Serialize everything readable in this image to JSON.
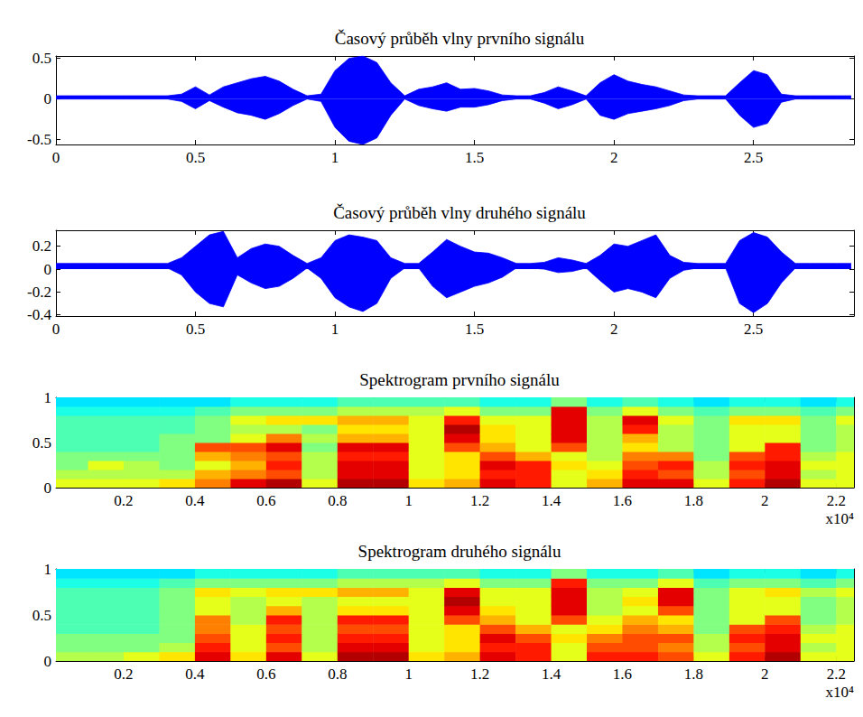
{
  "chart_data": [
    {
      "type": "area",
      "title": "Časový průběh vlny prvního signálu",
      "color": "#0000ff",
      "xlim": [
        0,
        2.86
      ],
      "xticks": [
        0,
        0.5,
        1,
        1.5,
        2,
        2.5
      ],
      "ylim": [
        -0.56,
        0.53
      ],
      "yticks": [
        -0.5,
        0,
        0.5
      ],
      "x": [
        0,
        0.05,
        0.1,
        0.15,
        0.2,
        0.25,
        0.3,
        0.35,
        0.4,
        0.45,
        0.5,
        0.55,
        0.6,
        0.65,
        0.7,
        0.75,
        0.8,
        0.85,
        0.9,
        0.95,
        1,
        1.05,
        1.1,
        1.15,
        1.2,
        1.25,
        1.3,
        1.35,
        1.4,
        1.45,
        1.5,
        1.55,
        1.6,
        1.65,
        1.7,
        1.75,
        1.8,
        1.85,
        1.9,
        1.95,
        2,
        2.05,
        2.1,
        2.15,
        2.2,
        2.25,
        2.3,
        2.35,
        2.4,
        2.45,
        2.5,
        2.55,
        2.6,
        2.65,
        2.7,
        2.75,
        2.8,
        2.85
      ],
      "upper": [
        0.04,
        0.04,
        0.04,
        0.04,
        0.04,
        0.04,
        0.04,
        0.04,
        0.04,
        0.06,
        0.15,
        0.05,
        0.15,
        0.2,
        0.25,
        0.28,
        0.22,
        0.12,
        0.04,
        0.06,
        0.35,
        0.5,
        0.53,
        0.45,
        0.2,
        0.04,
        0.12,
        0.15,
        0.2,
        0.12,
        0.13,
        0.1,
        0.05,
        0.04,
        0.04,
        0.08,
        0.15,
        0.1,
        0.04,
        0.2,
        0.3,
        0.22,
        0.18,
        0.15,
        0.1,
        0.05,
        0.04,
        0.04,
        0.04,
        0.2,
        0.35,
        0.3,
        0.06,
        0.04,
        0.04,
        0.04,
        0.04,
        0.04
      ],
      "lower": [
        0,
        0,
        0,
        0,
        0,
        0,
        0,
        0,
        0,
        -0.03,
        -0.12,
        -0.02,
        -0.1,
        -0.17,
        -0.2,
        -0.25,
        -0.18,
        -0.08,
        0,
        -0.03,
        -0.35,
        -0.52,
        -0.56,
        -0.48,
        -0.2,
        0,
        -0.08,
        -0.12,
        -0.15,
        -0.1,
        -0.1,
        -0.07,
        -0.02,
        0,
        0,
        -0.05,
        -0.12,
        -0.07,
        0,
        -0.2,
        -0.25,
        -0.18,
        -0.15,
        -0.12,
        -0.08,
        -0.02,
        0,
        0,
        0,
        -0.2,
        -0.35,
        -0.3,
        -0.04,
        0,
        0,
        0,
        0,
        0
      ]
    },
    {
      "type": "area",
      "title": "Časový průběh vlny druhého signálu",
      "color": "#0000ff",
      "xlim": [
        0,
        2.86
      ],
      "xticks": [
        0,
        0.5,
        1,
        1.5,
        2,
        2.5
      ],
      "ylim": [
        -0.41,
        0.34
      ],
      "yticks": [
        -0.4,
        -0.2,
        0,
        0.2
      ],
      "x": [
        0,
        0.05,
        0.1,
        0.15,
        0.2,
        0.25,
        0.3,
        0.35,
        0.4,
        0.45,
        0.5,
        0.55,
        0.6,
        0.65,
        0.7,
        0.75,
        0.8,
        0.85,
        0.9,
        0.95,
        1,
        1.05,
        1.1,
        1.15,
        1.2,
        1.25,
        1.3,
        1.35,
        1.4,
        1.45,
        1.5,
        1.55,
        1.6,
        1.65,
        1.7,
        1.75,
        1.8,
        1.85,
        1.9,
        1.95,
        2,
        2.05,
        2.1,
        2.15,
        2.2,
        2.25,
        2.3,
        2.35,
        2.4,
        2.45,
        2.5,
        2.55,
        2.6,
        2.65,
        2.7,
        2.75,
        2.8,
        2.85
      ],
      "upper": [
        0.05,
        0.05,
        0.05,
        0.05,
        0.05,
        0.05,
        0.05,
        0.05,
        0.05,
        0.1,
        0.2,
        0.3,
        0.33,
        0.1,
        0.18,
        0.22,
        0.2,
        0.12,
        0.05,
        0.1,
        0.25,
        0.3,
        0.28,
        0.25,
        0.1,
        0.05,
        0.05,
        0.15,
        0.26,
        0.2,
        0.15,
        0.14,
        0.1,
        0.05,
        0.05,
        0.06,
        0.1,
        0.08,
        0.05,
        0.12,
        0.22,
        0.2,
        0.25,
        0.3,
        0.12,
        0.06,
        0.05,
        0.05,
        0.05,
        0.25,
        0.32,
        0.28,
        0.15,
        0.05,
        0.05,
        0.05,
        0.05,
        0.05
      ],
      "lower": [
        0.01,
        0.01,
        0.01,
        0.01,
        0.01,
        0.01,
        0.01,
        0.01,
        0.01,
        -0.05,
        -0.2,
        -0.3,
        -0.33,
        -0.05,
        -0.12,
        -0.17,
        -0.15,
        -0.08,
        0.01,
        -0.08,
        -0.25,
        -0.33,
        -0.37,
        -0.3,
        -0.08,
        0.01,
        0.01,
        -0.15,
        -0.25,
        -0.2,
        -0.15,
        -0.12,
        -0.07,
        0.01,
        0.01,
        0,
        -0.03,
        -0.02,
        0.01,
        -0.1,
        -0.2,
        -0.17,
        -0.2,
        -0.25,
        -0.08,
        -0.01,
        0.01,
        0.01,
        0.01,
        -0.3,
        -0.38,
        -0.3,
        -0.12,
        0.01,
        0.01,
        0.01,
        0.01,
        0.01
      ]
    },
    {
      "type": "heatmap",
      "title": "Spektrogram prvního signálu",
      "annotation": "x10⁴",
      "xlim": [
        0.01,
        2.25
      ],
      "xticks": [
        0.2,
        0.4,
        0.6,
        0.8,
        1,
        1.2,
        1.4,
        1.6,
        1.8,
        2,
        2.2
      ],
      "ylim": [
        0,
        1
      ],
      "yticks": [
        0,
        0.5,
        1
      ],
      "color_range": [
        0,
        1
      ],
      "x_edges": [
        0,
        0.1,
        0.2,
        0.3,
        0.4,
        0.5,
        0.6,
        0.7,
        0.8,
        0.9,
        1,
        1.1,
        1.2,
        1.3,
        1.4,
        1.5,
        1.6,
        1.7,
        1.8,
        1.9,
        2,
        2.1,
        2.2,
        2.3
      ],
      "y_edges": [
        0,
        0.1,
        0.2,
        0.3,
        0.4,
        0.5,
        0.6,
        0.7,
        0.8,
        0.9,
        1
      ],
      "cells": [
        [
          0.6,
          0.55,
          0.5,
          0.5,
          0.45,
          0.45,
          0.45,
          0.45,
          0.4,
          0.35
        ],
        [
          0.6,
          0.55,
          0.6,
          0.5,
          0.45,
          0.45,
          0.45,
          0.45,
          0.4,
          0.35
        ],
        [
          0.6,
          0.55,
          0.55,
          0.5,
          0.45,
          0.45,
          0.45,
          0.45,
          0.4,
          0.35
        ],
        [
          0.65,
          0.55,
          0.5,
          0.5,
          0.5,
          0.5,
          0.45,
          0.45,
          0.4,
          0.35
        ],
        [
          0.75,
          0.7,
          0.6,
          0.7,
          0.8,
          0.5,
          0.5,
          0.5,
          0.45,
          0.35
        ],
        [
          0.9,
          0.75,
          0.7,
          0.75,
          0.8,
          0.6,
          0.55,
          0.6,
          0.5,
          0.4
        ],
        [
          0.95,
          0.8,
          0.85,
          0.8,
          0.9,
          0.75,
          0.55,
          0.65,
          0.5,
          0.4
        ],
        [
          0.6,
          0.55,
          0.55,
          0.55,
          0.5,
          0.55,
          0.5,
          0.65,
          0.5,
          0.4
        ],
        [
          0.95,
          0.9,
          0.9,
          0.85,
          0.9,
          0.7,
          0.65,
          0.7,
          0.55,
          0.45
        ],
        [
          0.95,
          0.9,
          0.9,
          0.85,
          0.9,
          0.7,
          0.65,
          0.7,
          0.55,
          0.45
        ],
        [
          0.65,
          0.6,
          0.6,
          0.6,
          0.6,
          0.6,
          0.6,
          0.6,
          0.55,
          0.45
        ],
        [
          0.7,
          0.65,
          0.65,
          0.65,
          0.8,
          0.9,
          0.95,
          0.85,
          0.6,
          0.45
        ],
        [
          0.9,
          0.85,
          0.9,
          0.8,
          0.7,
          0.65,
          0.65,
          0.6,
          0.5,
          0.4
        ],
        [
          0.85,
          0.85,
          0.85,
          0.7,
          0.6,
          0.6,
          0.6,
          0.6,
          0.5,
          0.4
        ],
        [
          0.6,
          0.6,
          0.65,
          0.6,
          0.8,
          0.9,
          0.9,
          0.9,
          0.9,
          0.5
        ],
        [
          0.7,
          0.65,
          0.6,
          0.55,
          0.55,
          0.55,
          0.55,
          0.55,
          0.5,
          0.4
        ],
        [
          0.9,
          0.85,
          0.8,
          0.75,
          0.65,
          0.7,
          0.85,
          0.9,
          0.6,
          0.45
        ],
        [
          0.9,
          0.8,
          0.85,
          0.75,
          0.55,
          0.55,
          0.55,
          0.6,
          0.5,
          0.4
        ],
        [
          0.6,
          0.55,
          0.55,
          0.5,
          0.5,
          0.5,
          0.5,
          0.5,
          0.45,
          0.35
        ],
        [
          0.85,
          0.8,
          0.85,
          0.8,
          0.6,
          0.6,
          0.6,
          0.65,
          0.5,
          0.4
        ],
        [
          0.95,
          0.9,
          0.9,
          0.85,
          0.85,
          0.6,
          0.6,
          0.65,
          0.5,
          0.4
        ],
        [
          0.6,
          0.55,
          0.6,
          0.55,
          0.5,
          0.5,
          0.5,
          0.5,
          0.45,
          0.35
        ],
        [
          0.6,
          0.6,
          0.6,
          0.6,
          0.55,
          0.55,
          0.55,
          0.6,
          0.5,
          0.4
        ]
      ]
    },
    {
      "type": "heatmap",
      "title": "Spektrogram druhého signálu",
      "annotation": "x10⁴",
      "xlim": [
        0.01,
        2.25
      ],
      "xticks": [
        0.2,
        0.4,
        0.6,
        0.8,
        1,
        1.2,
        1.4,
        1.6,
        1.8,
        2,
        2.2
      ],
      "ylim": [
        0,
        1
      ],
      "yticks": [
        0,
        0.5,
        1
      ],
      "color_range": [
        0,
        1
      ],
      "x_edges": [
        0,
        0.1,
        0.2,
        0.3,
        0.4,
        0.5,
        0.6,
        0.7,
        0.8,
        0.9,
        1,
        1.1,
        1.2,
        1.3,
        1.4,
        1.5,
        1.6,
        1.7,
        1.8,
        1.9,
        2,
        2.1,
        2.2,
        2.3
      ],
      "y_edges": [
        0,
        0.1,
        0.2,
        0.3,
        0.4,
        0.5,
        0.6,
        0.7,
        0.8,
        0.9,
        1
      ],
      "cells": [
        [
          0.55,
          0.5,
          0.5,
          0.45,
          0.45,
          0.45,
          0.45,
          0.45,
          0.4,
          0.35
        ],
        [
          0.55,
          0.5,
          0.5,
          0.45,
          0.45,
          0.45,
          0.45,
          0.45,
          0.4,
          0.35
        ],
        [
          0.6,
          0.5,
          0.5,
          0.45,
          0.45,
          0.45,
          0.45,
          0.45,
          0.4,
          0.35
        ],
        [
          0.65,
          0.55,
          0.5,
          0.5,
          0.5,
          0.5,
          0.5,
          0.5,
          0.45,
          0.35
        ],
        [
          0.9,
          0.85,
          0.8,
          0.75,
          0.75,
          0.6,
          0.6,
          0.65,
          0.5,
          0.4
        ],
        [
          0.65,
          0.6,
          0.6,
          0.6,
          0.55,
          0.55,
          0.55,
          0.6,
          0.5,
          0.4
        ],
        [
          0.9,
          0.8,
          0.85,
          0.8,
          0.85,
          0.7,
          0.6,
          0.65,
          0.5,
          0.4
        ],
        [
          0.6,
          0.55,
          0.55,
          0.55,
          0.55,
          0.55,
          0.55,
          0.65,
          0.5,
          0.4
        ],
        [
          0.95,
          0.9,
          0.85,
          0.8,
          0.85,
          0.65,
          0.6,
          0.7,
          0.55,
          0.45
        ],
        [
          0.95,
          0.9,
          0.85,
          0.8,
          0.85,
          0.65,
          0.6,
          0.7,
          0.55,
          0.45
        ],
        [
          0.65,
          0.6,
          0.6,
          0.6,
          0.6,
          0.6,
          0.6,
          0.6,
          0.55,
          0.45
        ],
        [
          0.7,
          0.65,
          0.65,
          0.65,
          0.8,
          0.9,
          0.95,
          0.9,
          0.6,
          0.45
        ],
        [
          0.9,
          0.85,
          0.9,
          0.8,
          0.7,
          0.65,
          0.6,
          0.6,
          0.5,
          0.4
        ],
        [
          0.85,
          0.85,
          0.8,
          0.7,
          0.6,
          0.6,
          0.6,
          0.6,
          0.5,
          0.4
        ],
        [
          0.6,
          0.6,
          0.65,
          0.6,
          0.8,
          0.9,
          0.9,
          0.9,
          0.85,
          0.5
        ],
        [
          0.85,
          0.8,
          0.75,
          0.65,
          0.6,
          0.55,
          0.55,
          0.55,
          0.5,
          0.4
        ],
        [
          0.85,
          0.8,
          0.8,
          0.75,
          0.7,
          0.6,
          0.65,
          0.6,
          0.5,
          0.4
        ],
        [
          0.8,
          0.75,
          0.8,
          0.7,
          0.65,
          0.8,
          0.9,
          0.9,
          0.6,
          0.45
        ],
        [
          0.6,
          0.55,
          0.55,
          0.5,
          0.5,
          0.5,
          0.5,
          0.5,
          0.45,
          0.35
        ],
        [
          0.85,
          0.8,
          0.85,
          0.8,
          0.6,
          0.6,
          0.6,
          0.6,
          0.5,
          0.4
        ],
        [
          0.95,
          0.9,
          0.9,
          0.85,
          0.8,
          0.6,
          0.6,
          0.65,
          0.5,
          0.4
        ],
        [
          0.6,
          0.55,
          0.6,
          0.55,
          0.5,
          0.5,
          0.5,
          0.55,
          0.45,
          0.35
        ],
        [
          0.6,
          0.6,
          0.6,
          0.6,
          0.55,
          0.55,
          0.55,
          0.6,
          0.5,
          0.4
        ]
      ]
    }
  ]
}
